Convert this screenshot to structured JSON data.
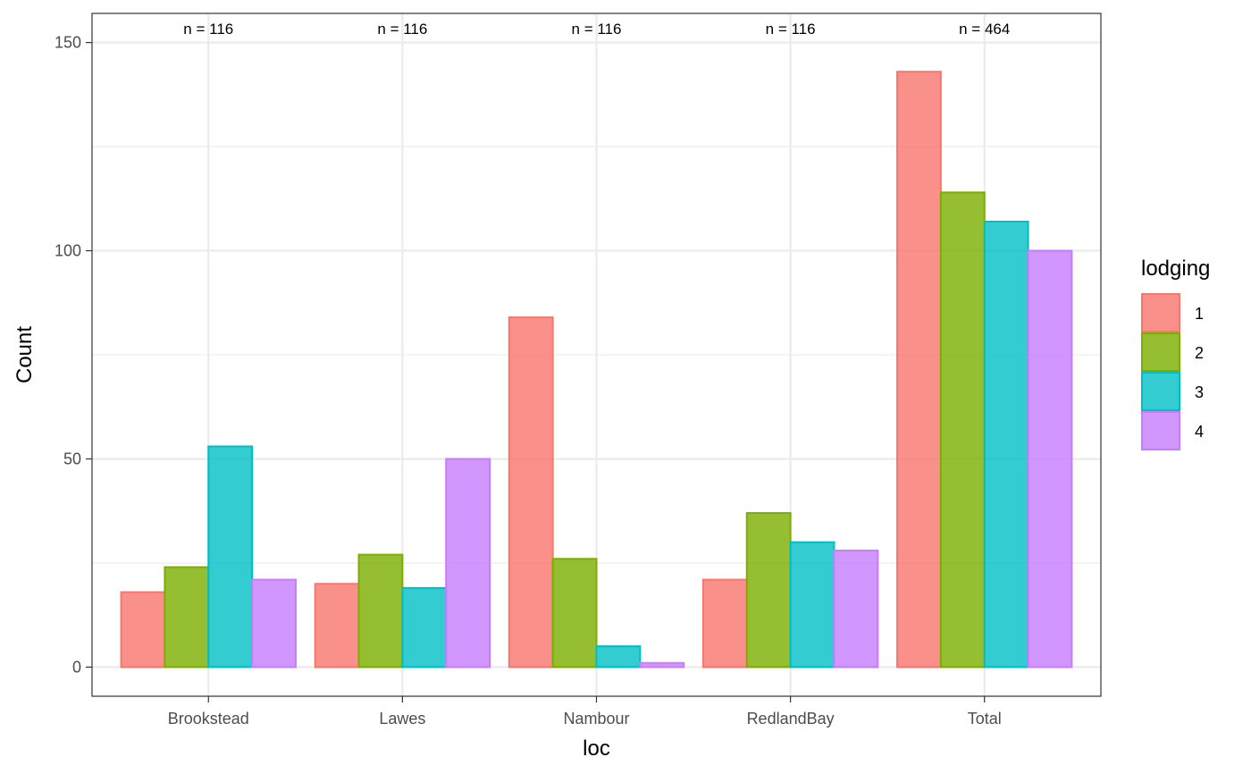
{
  "chart_data": {
    "type": "bar",
    "title": "",
    "xlabel": "loc",
    "ylabel": "Count",
    "ylim": [
      -7,
      157
    ],
    "yticks": [
      0,
      50,
      100,
      150
    ],
    "grid": true,
    "legend_placement": "right",
    "legend_title": "lodging",
    "categories": [
      "Brookstead",
      "Lawes",
      "Nambour",
      "RedlandBay",
      "Total"
    ],
    "group_counts": [
      "n = 116",
      "n = 116",
      "n = 116",
      "n = 116",
      "n = 464"
    ],
    "series": [
      {
        "name": "1",
        "fill": "#F8766D",
        "values": [
          18,
          20,
          84,
          21,
          143
        ]
      },
      {
        "name": "2",
        "fill": "#7CAE00",
        "values": [
          24,
          27,
          26,
          37,
          114
        ]
      },
      {
        "name": "3",
        "fill": "#00BFC4",
        "values": [
          53,
          19,
          5,
          30,
          107
        ]
      },
      {
        "name": "4",
        "fill": "#C77CFF",
        "values": [
          21,
          50,
          1,
          28,
          100
        ]
      }
    ]
  }
}
